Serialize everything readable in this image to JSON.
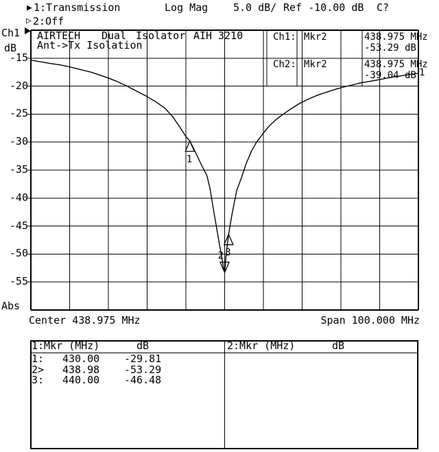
{
  "window": {
    "bg": "#ffffff",
    "fg": "#000000"
  },
  "header": {
    "active_marker": "▶",
    "inactive_marker": "▷",
    "line1": [
      "1:Transmission",
      "Log Mag",
      "5.0 dB/",
      "Ref -10.00 dB",
      "C?"
    ],
    "line2": [
      "2:Off"
    ]
  },
  "left_rail": {
    "channel": "Ch1",
    "pointer": "▶",
    "unit": "dB",
    "bottom": "Abs"
  },
  "title": {
    "line1_tokens": [
      "AIRTECH",
      "Dual",
      "Isolator",
      "AIH",
      "3210"
    ],
    "line2": "Ant->Tx Isolation"
  },
  "readout": {
    "rows": [
      {
        "ch": "Ch1:",
        "mkr": "Mkr2",
        "freq": "438.975 MHz",
        "db": "-53.29 dB"
      },
      {
        "ch": "Ch2:",
        "mkr": "Mkr2",
        "freq": "438.975 MHz",
        "db": "-39.04 dB"
      }
    ]
  },
  "footer": {
    "center": "Center 438.975 MHz",
    "span": "Span 100.000 MHz"
  },
  "marker_table": {
    "panels": [
      {
        "header": "1:Mkr (MHz)",
        "unit": "dB",
        "rows": [
          {
            "id": "1:",
            "freq": "430.00",
            "db": "-29.81"
          },
          {
            "id": "2>",
            "freq": "438.98",
            "db": "-53.29"
          },
          {
            "id": "3:",
            "freq": "440.00",
            "db": "-46.48"
          }
        ]
      },
      {
        "header": "2:Mkr (MHz)",
        "unit": "dB",
        "rows": []
      }
    ]
  },
  "chart_data": {
    "type": "line",
    "title": "AIRTECH Dual Isolator AIH 3210",
    "subtitle": "Ant->Tx Isolation",
    "x_axis": {
      "center_mhz": 438.975,
      "span_mhz": 100.0,
      "min_mhz": 388.975,
      "max_mhz": 488.975,
      "label": "Center 438.975 MHz / Span 100.000 MHz"
    },
    "y_axis": {
      "label": "dB",
      "ref_db": -10.0,
      "db_per_div": 5.0,
      "max_db": -10,
      "min_db": -60,
      "ticks": [
        -15,
        -20,
        -25,
        -30,
        -35,
        -40,
        -45,
        -50,
        -55
      ]
    },
    "grid": {
      "cols": 10,
      "rows": 10
    },
    "series": [
      {
        "name": "1:Transmission Log Mag 5.0 dB/ Ref -10.00 dB",
        "points_mhz_db": [
          [
            388.975,
            -15.35
          ],
          [
            391.5,
            -15.65
          ],
          [
            394.0,
            -15.95
          ],
          [
            396.5,
            -16.2
          ],
          [
            398.975,
            -16.55
          ],
          [
            401.5,
            -17.0
          ],
          [
            404.5,
            -17.5
          ],
          [
            406.7,
            -18.0
          ],
          [
            408.975,
            -18.55
          ],
          [
            411.0,
            -19.1
          ],
          [
            413.5,
            -19.9
          ],
          [
            416.0,
            -20.8
          ],
          [
            418.8,
            -21.8
          ],
          [
            421.0,
            -22.7
          ],
          [
            423.5,
            -23.9
          ],
          [
            425.5,
            -25.4
          ],
          [
            427.2,
            -27.1
          ],
          [
            428.975,
            -29.0
          ],
          [
            430.0,
            -29.81
          ],
          [
            431.3,
            -31.6
          ],
          [
            432.8,
            -33.8
          ],
          [
            434.4,
            -36.0
          ],
          [
            435.2,
            -38.3
          ],
          [
            436.0,
            -41.7
          ],
          [
            437.0,
            -45.7
          ],
          [
            438.0,
            -49.7
          ],
          [
            438.6,
            -52.1
          ],
          [
            438.98,
            -53.29
          ],
          [
            439.4,
            -49.8
          ],
          [
            440.0,
            -46.48
          ],
          [
            440.7,
            -43.6
          ],
          [
            441.4,
            -41.0
          ],
          [
            442.1,
            -38.6
          ],
          [
            443.3,
            -36.4
          ],
          [
            444.5,
            -33.9
          ],
          [
            445.9,
            -31.6
          ],
          [
            447.2,
            -30.0
          ],
          [
            448.975,
            -28.4
          ],
          [
            450.5,
            -27.1
          ],
          [
            452.2,
            -26.0
          ],
          [
            453.9,
            -25.1
          ],
          [
            456.0,
            -24.1
          ],
          [
            458.3,
            -23.1
          ],
          [
            460.6,
            -22.3
          ],
          [
            463.0,
            -21.6
          ],
          [
            465.6,
            -21.0
          ],
          [
            468.3,
            -20.4
          ],
          [
            471.2,
            -19.9
          ],
          [
            474.2,
            -19.4
          ],
          [
            477.6,
            -19.0
          ],
          [
            481.3,
            -18.5
          ],
          [
            485.0,
            -18.1
          ],
          [
            488.975,
            -17.7
          ]
        ]
      }
    ],
    "markers": [
      {
        "n": "1",
        "mhz": 430.0,
        "db": -29.81,
        "shape": "up",
        "active": false
      },
      {
        "n": "2",
        "mhz": 438.98,
        "db": -53.29,
        "shape": "down",
        "active": true
      },
      {
        "n": "3",
        "mhz": 440.0,
        "db": -46.48,
        "shape": "up",
        "active": false
      }
    ],
    "trace_number_label": "1"
  }
}
